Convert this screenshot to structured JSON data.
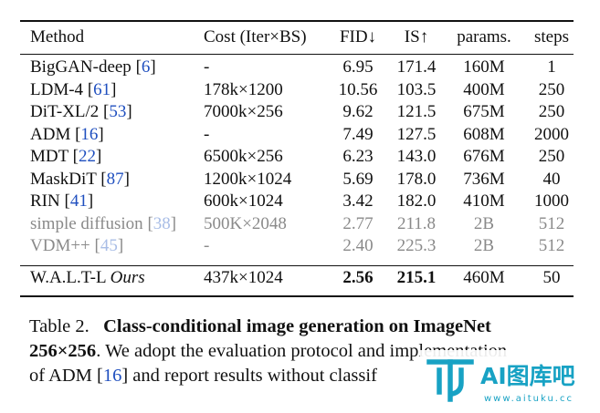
{
  "table": {
    "headers": [
      "Method",
      "Cost (Iter×BS)",
      "FID↓",
      "IS↑",
      "params.",
      "steps"
    ],
    "rows": [
      {
        "method": "BigGAN-deep",
        "ref": "6",
        "cost": "-",
        "fid": "6.95",
        "is": "171.4",
        "params": "160M",
        "steps": "1"
      },
      {
        "method": "LDM-4",
        "ref": "61",
        "cost": "178k×1200",
        "fid": "10.56",
        "is": "103.5",
        "params": "400M",
        "steps": "250"
      },
      {
        "method": "DiT-XL/2",
        "ref": "53",
        "cost": "7000k×256",
        "fid": "9.62",
        "is": "121.5",
        "params": "675M",
        "steps": "250"
      },
      {
        "method": "ADM",
        "ref": "16",
        "cost": "-",
        "fid": "7.49",
        "is": "127.5",
        "params": "608M",
        "steps": "2000"
      },
      {
        "method": "MDT",
        "ref": "22",
        "cost": "6500k×256",
        "fid": "6.23",
        "is": "143.0",
        "params": "676M",
        "steps": "250"
      },
      {
        "method": "MaskDiT",
        "ref": "87",
        "cost": "1200k×1024",
        "fid": "5.69",
        "is": "178.0",
        "params": "736M",
        "steps": "40"
      },
      {
        "method": "RIN",
        "ref": "41",
        "cost": "600k×1024",
        "fid": "3.42",
        "is": "182.0",
        "params": "410M",
        "steps": "1000"
      },
      {
        "method": "simple diffusion",
        "ref": "38",
        "cost": "500K×2048",
        "fid": "2.77",
        "is": "211.8",
        "params": "2B",
        "steps": "512"
      },
      {
        "method": "VDM++",
        "ref": "45",
        "cost": "-",
        "fid": "2.40",
        "is": "225.3",
        "params": "2B",
        "steps": "512"
      }
    ],
    "ours": {
      "method": "W.A.L.T-L",
      "tag": "Ours",
      "cost": "437k×1024",
      "fid": "2.56",
      "is": "215.1",
      "params": "460M",
      "steps": "50"
    }
  },
  "caption": {
    "label": "Table 2.",
    "bold_title": "Class-conditional image generation on ImageNet",
    "bold_res": "256×256",
    "line2_rest": ". We adopt the evaluation protocol a",
    "line2_tail": "nd implementation",
    "line3_start": "of ADM [",
    "line3_ref": "16",
    "line3_end": "] and report results without classif"
  },
  "watermark": {
    "text": "AI图库吧",
    "url": "www.aituku.cc",
    "color": "#18a2c4"
  }
}
